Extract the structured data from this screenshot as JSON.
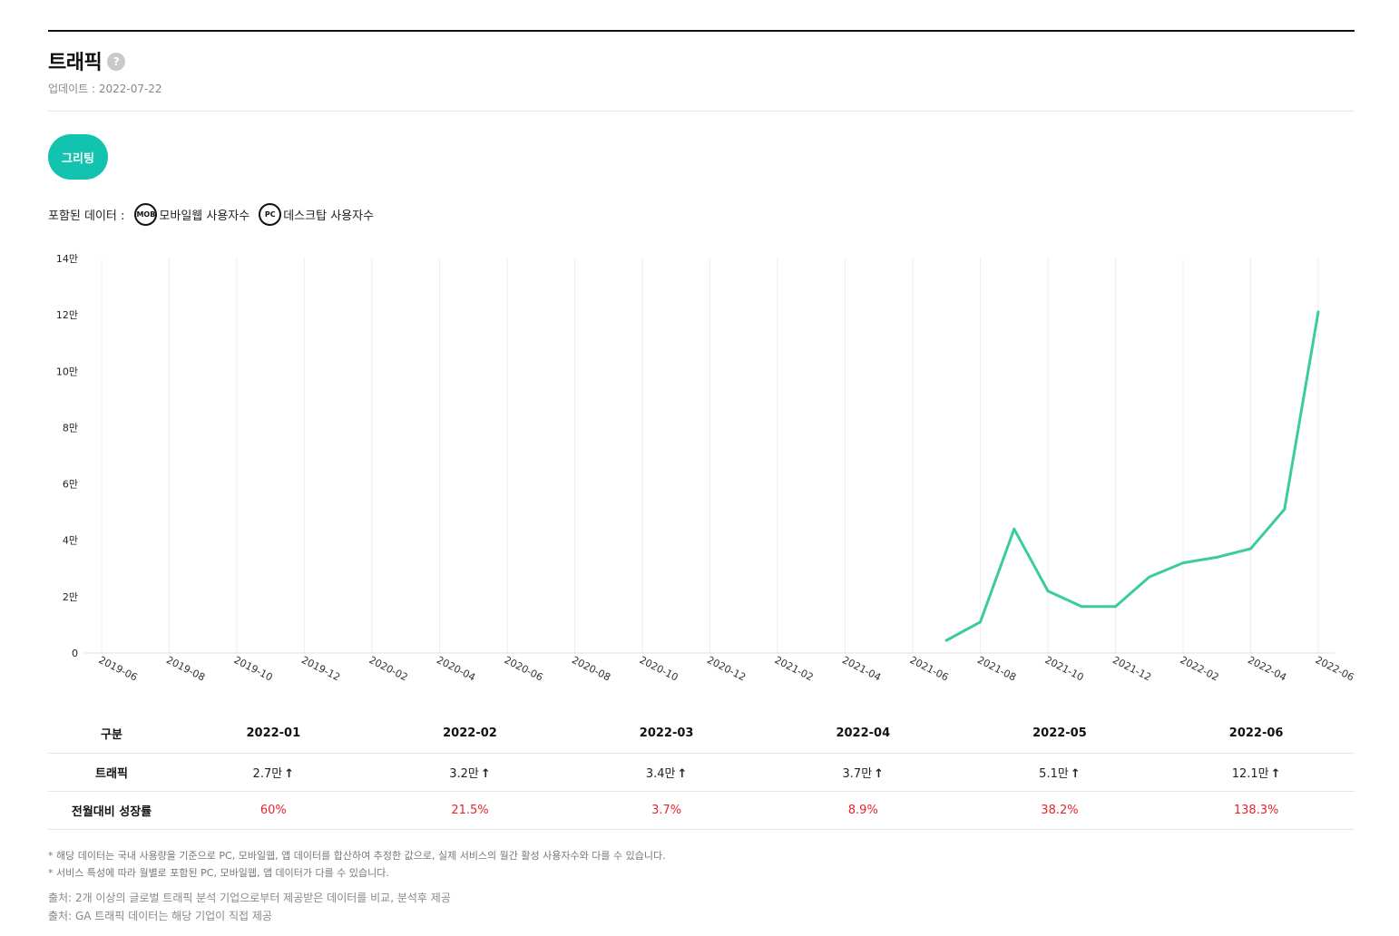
{
  "header": {
    "title": "트래픽",
    "help_glyph": "?",
    "updated": "업데이트 : 2022-07-22"
  },
  "brand_button": {
    "label": "그리팅",
    "color": "#12c4b0"
  },
  "included": {
    "label": "포함된 데이터 :",
    "items": [
      {
        "badge": "MOB",
        "label": "모바일웹 사용자수"
      },
      {
        "badge": "PC",
        "label": "데스크탑 사용자수"
      }
    ]
  },
  "chart_data": {
    "type": "line",
    "x": [
      "2019-06",
      "2019-07",
      "2019-08",
      "2019-09",
      "2019-10",
      "2019-11",
      "2019-12",
      "2020-01",
      "2020-02",
      "2020-03",
      "2020-04",
      "2020-05",
      "2020-06",
      "2020-07",
      "2020-08",
      "2020-09",
      "2020-10",
      "2020-11",
      "2020-12",
      "2021-01",
      "2021-02",
      "2021-03",
      "2021-04",
      "2021-05",
      "2021-06",
      "2021-07",
      "2021-08",
      "2021-09",
      "2021-10",
      "2021-11",
      "2021-12",
      "2022-01",
      "2022-02",
      "2022-03",
      "2022-04",
      "2022-05",
      "2022-06"
    ],
    "x_tick_labels": [
      "2019-06",
      "2019-08",
      "2019-10",
      "2019-12",
      "2020-02",
      "2020-04",
      "2020-06",
      "2020-08",
      "2020-10",
      "2020-12",
      "2021-02",
      "2021-04",
      "2021-06",
      "2021-08",
      "2021-10",
      "2021-12",
      "2022-02",
      "2022-04",
      "2022-06"
    ],
    "y_ticks": [
      0,
      20000,
      40000,
      60000,
      80000,
      100000,
      120000,
      140000
    ],
    "y_tick_labels": [
      "0",
      "2만",
      "4만",
      "6만",
      "8만",
      "10만",
      "12만",
      "14만"
    ],
    "ylim": [
      0,
      140000
    ],
    "series": [
      {
        "color": "#3ccc9b",
        "points": [
          {
            "x": "2021-07",
            "y": 4500
          },
          {
            "x": "2021-08",
            "y": 11000
          },
          {
            "x": "2021-09",
            "y": 44000
          },
          {
            "x": "2021-10",
            "y": 22000
          },
          {
            "x": "2021-11",
            "y": 16500
          },
          {
            "x": "2021-12",
            "y": 16500
          },
          {
            "x": "2022-01",
            "y": 27000
          },
          {
            "x": "2022-02",
            "y": 32000
          },
          {
            "x": "2022-03",
            "y": 34000
          },
          {
            "x": "2022-04",
            "y": 37000
          },
          {
            "x": "2022-05",
            "y": 51000
          },
          {
            "x": "2022-06",
            "y": 121000
          }
        ]
      }
    ],
    "grid": "vertical"
  },
  "table": {
    "header_label": "구분",
    "columns": [
      "2022-01",
      "2022-02",
      "2022-03",
      "2022-04",
      "2022-05",
      "2022-06"
    ],
    "traffic_label": "트래픽",
    "traffic": [
      "2.7만",
      "3.2만",
      "3.4만",
      "3.7만",
      "5.1만",
      "12.1만"
    ],
    "arrow_glyph": "↑",
    "growth_label": "전월대비 성장률",
    "growth": [
      "60%",
      "21.5%",
      "3.7%",
      "8.9%",
      "38.2%",
      "138.3%"
    ]
  },
  "notes": [
    "* 해당 데이터는 국내 사용량을 기준으로 PC, 모바일웹, 앱 데이터를 합산하여 추정한 값으로, 실제 서비스의 월간 활성 사용자수와 다를 수 있습니다.",
    "* 서비스 특성에 따라 월별로 포함된 PC, 모바일웹, 앱 데이터가 다를 수 있습니다."
  ],
  "sources": [
    "출처: 2개 이상의 글로벌 트래픽 분석 기업으로부터 제공받은 데이터를 비교, 분석후 제공",
    "출처: GA 트래픽 데이터는 해당 기업이 직접 제공"
  ]
}
